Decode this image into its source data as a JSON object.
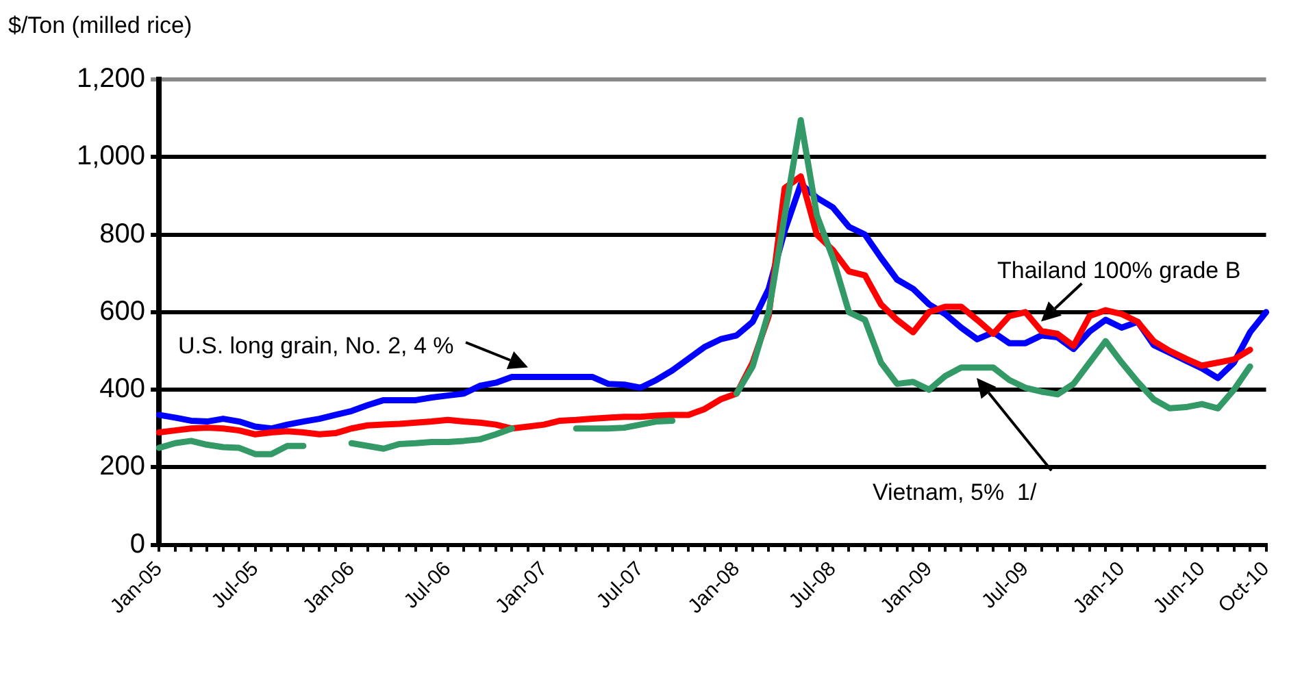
{
  "chart_data": {
    "type": "line",
    "ylabel": "$/Ton (milled rice)",
    "categories": [
      "Jan-05",
      null,
      null,
      null,
      null,
      null,
      "Jul-05",
      null,
      null,
      null,
      null,
      null,
      "Jan-06",
      null,
      null,
      null,
      null,
      null,
      "Jul-06",
      null,
      null,
      null,
      null,
      null,
      "Jan-07",
      null,
      null,
      null,
      null,
      null,
      "Jul-07",
      null,
      null,
      null,
      null,
      null,
      "Jan-08",
      null,
      null,
      null,
      null,
      null,
      "Jul-08",
      null,
      null,
      null,
      null,
      null,
      "Jan-09",
      null,
      null,
      null,
      null,
      null,
      "Jul-09",
      null,
      null,
      null,
      null,
      null,
      "Jan-10",
      null,
      null,
      null,
      null,
      "Jun-10",
      null,
      null,
      null,
      "Oct-10"
    ],
    "series": [
      {
        "name": "U.S. long grain, No. 2, 4 %",
        "color": "#0000ff",
        "values": [
          335,
          328,
          320,
          318,
          325,
          318,
          305,
          300,
          310,
          318,
          325,
          335,
          345,
          360,
          373,
          373,
          373,
          380,
          385,
          390,
          410,
          418,
          433,
          433,
          433,
          433,
          433,
          433,
          415,
          413,
          405,
          425,
          450,
          480,
          510,
          530,
          540,
          575,
          660,
          810,
          930,
          895,
          870,
          820,
          800,
          740,
          684,
          660,
          620,
          595,
          560,
          530,
          548,
          520,
          520,
          540,
          535,
          505,
          550,
          580,
          560,
          575,
          515,
          495,
          475,
          455,
          430,
          470,
          548,
          600
        ]
      },
      {
        "name": "Thailand 100% grade B",
        "color": "#ff0000",
        "values": [
          290,
          295,
          300,
          302,
          300,
          295,
          285,
          290,
          293,
          290,
          285,
          288,
          300,
          308,
          310,
          312,
          315,
          318,
          322,
          318,
          315,
          310,
          300,
          305,
          310,
          320,
          322,
          325,
          328,
          330,
          330,
          333,
          335,
          335,
          350,
          375,
          390,
          470,
          590,
          920,
          950,
          800,
          760,
          705,
          695,
          620,
          580,
          548,
          600,
          614,
          614,
          580,
          544,
          590,
          600,
          551,
          544,
          513,
          590,
          605,
          595,
          575,
          525,
          500,
          480,
          462,
          470,
          478,
          503,
          null
        ]
      },
      {
        "name": "Vietnam, 5%  1/",
        "color": "#339966",
        "values": [
          250,
          262,
          268,
          258,
          252,
          250,
          234,
          234,
          255,
          255,
          null,
          null,
          262,
          255,
          248,
          260,
          262,
          265,
          265,
          268,
          272,
          285,
          300,
          null,
          null,
          null,
          300,
          300,
          300,
          302,
          310,
          318,
          320,
          null,
          null,
          null,
          390,
          460,
          600,
          850,
          1095,
          850,
          740,
          600,
          580,
          470,
          415,
          420,
          400,
          435,
          457,
          457,
          457,
          425,
          405,
          395,
          388,
          415,
          470,
          525,
          470,
          420,
          375,
          352,
          355,
          363,
          352,
          400,
          460,
          null
        ]
      }
    ],
    "ylim": [
      0,
      1200
    ],
    "yticks": [
      0,
      200,
      400,
      600,
      800,
      {
        "value": 1000,
        "label": "1,000"
      },
      {
        "value": 1200,
        "label": "1,200"
      }
    ],
    "grid": "y",
    "legend": false,
    "marker": "none",
    "line_style": "solid"
  }
}
